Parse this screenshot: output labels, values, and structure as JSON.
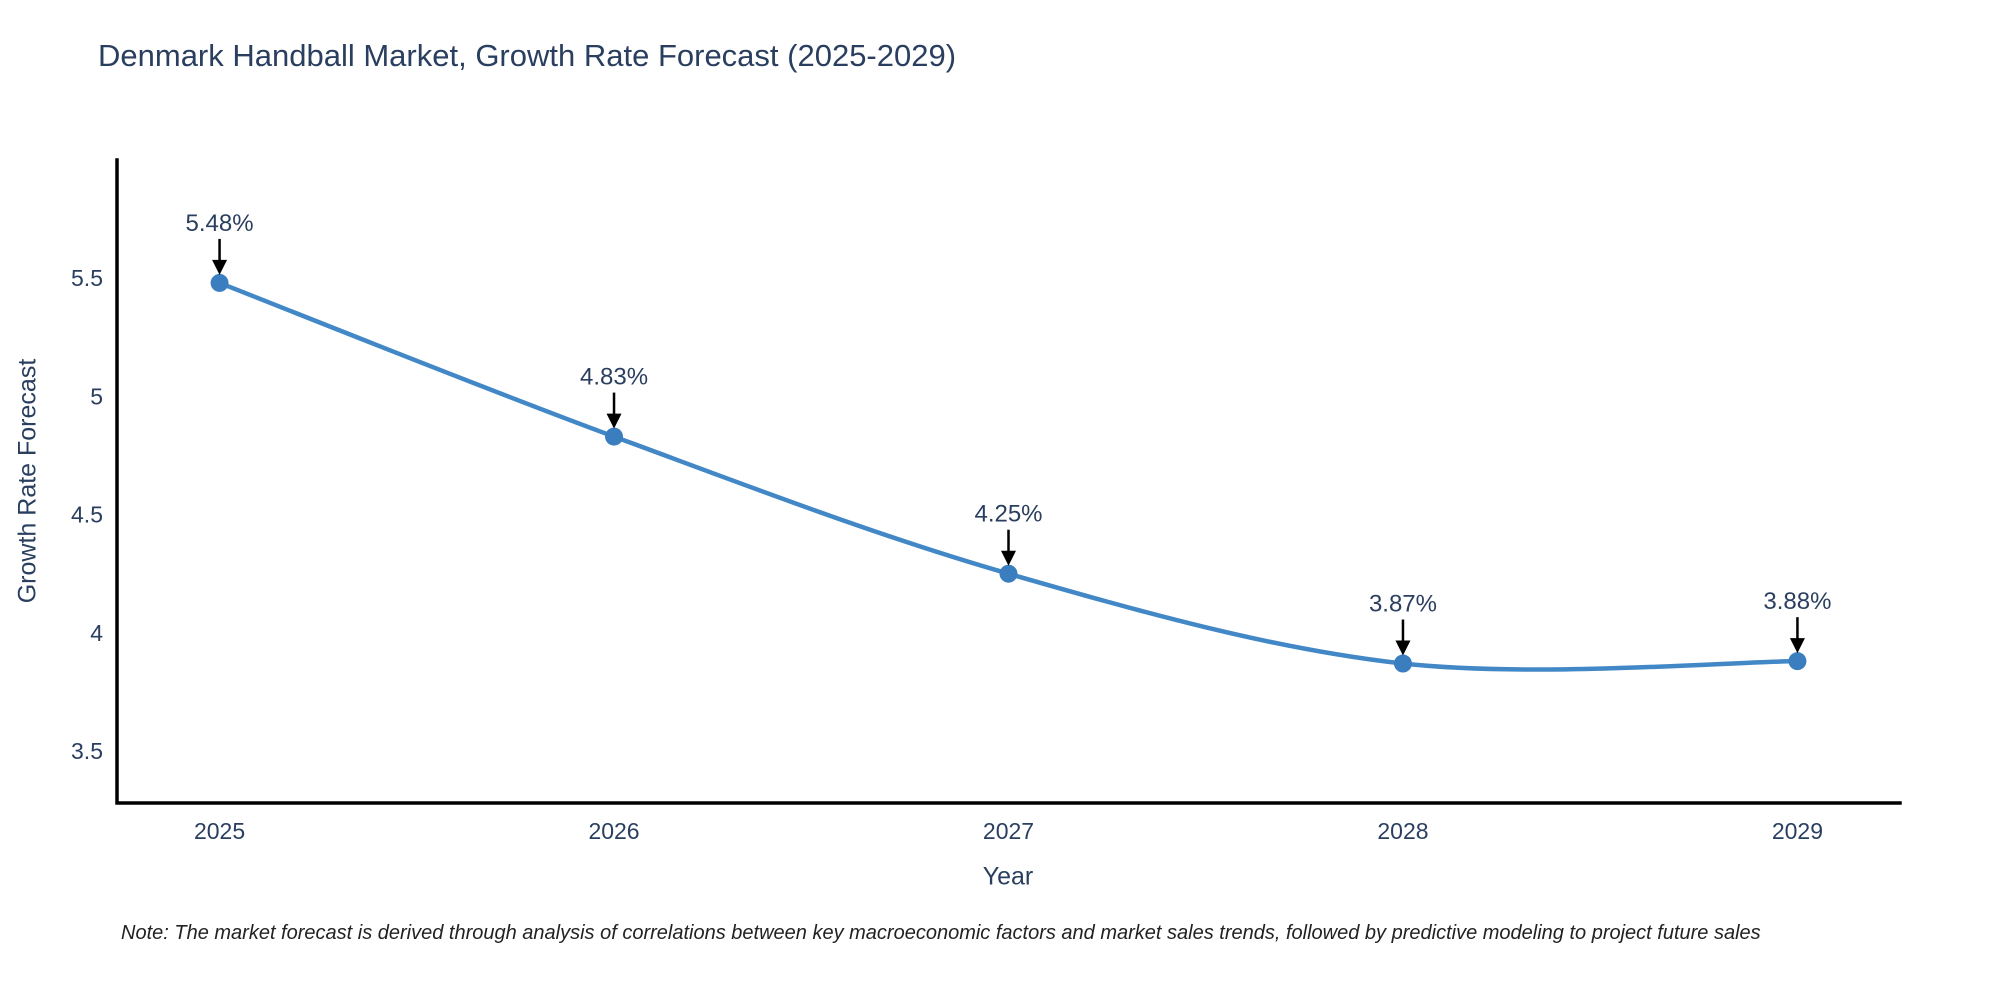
{
  "header": {
    "title": "Denmark Handball Market, Growth Rate Forecast (2025-2029)"
  },
  "chart_data": {
    "type": "line",
    "title": "Denmark Handball Market, Growth Rate Forecast (2025-2029)",
    "x": [
      2025,
      2026,
      2027,
      2028,
      2029
    ],
    "series": [
      {
        "name": "Growth Rate Forecast",
        "values": [
          5.48,
          4.83,
          4.25,
          3.87,
          3.88
        ]
      }
    ],
    "point_labels": [
      "5.48%",
      "4.83%",
      "4.25%",
      "3.87%",
      "3.88%"
    ],
    "xlabel": "Year",
    "ylabel": "Growth Rate Forecast",
    "x_tick_labels": [
      "2025",
      "2026",
      "2027",
      "2028",
      "2029"
    ],
    "y_tick_values": [
      5.5,
      5,
      4.5,
      4,
      3.5
    ],
    "y_tick_labels": [
      "5.5",
      "5",
      "4.5",
      "4",
      "3.5"
    ],
    "xlim": [
      2024.74,
      2029.26
    ],
    "ylim": [
      3.28,
      6.0
    ],
    "line_shape": "spline",
    "grid": false,
    "legend_position": "none",
    "colors": {
      "line": "#4287c6",
      "marker": "#3a7ebf",
      "axis": "#000000",
      "text": "#2a3f5f",
      "arrow": "#000000"
    }
  },
  "note": {
    "text": "Note: The market forecast is derived through analysis of correlations between key macroeconomic factors and market sales trends, followed by predictive modeling to project future sales"
  }
}
